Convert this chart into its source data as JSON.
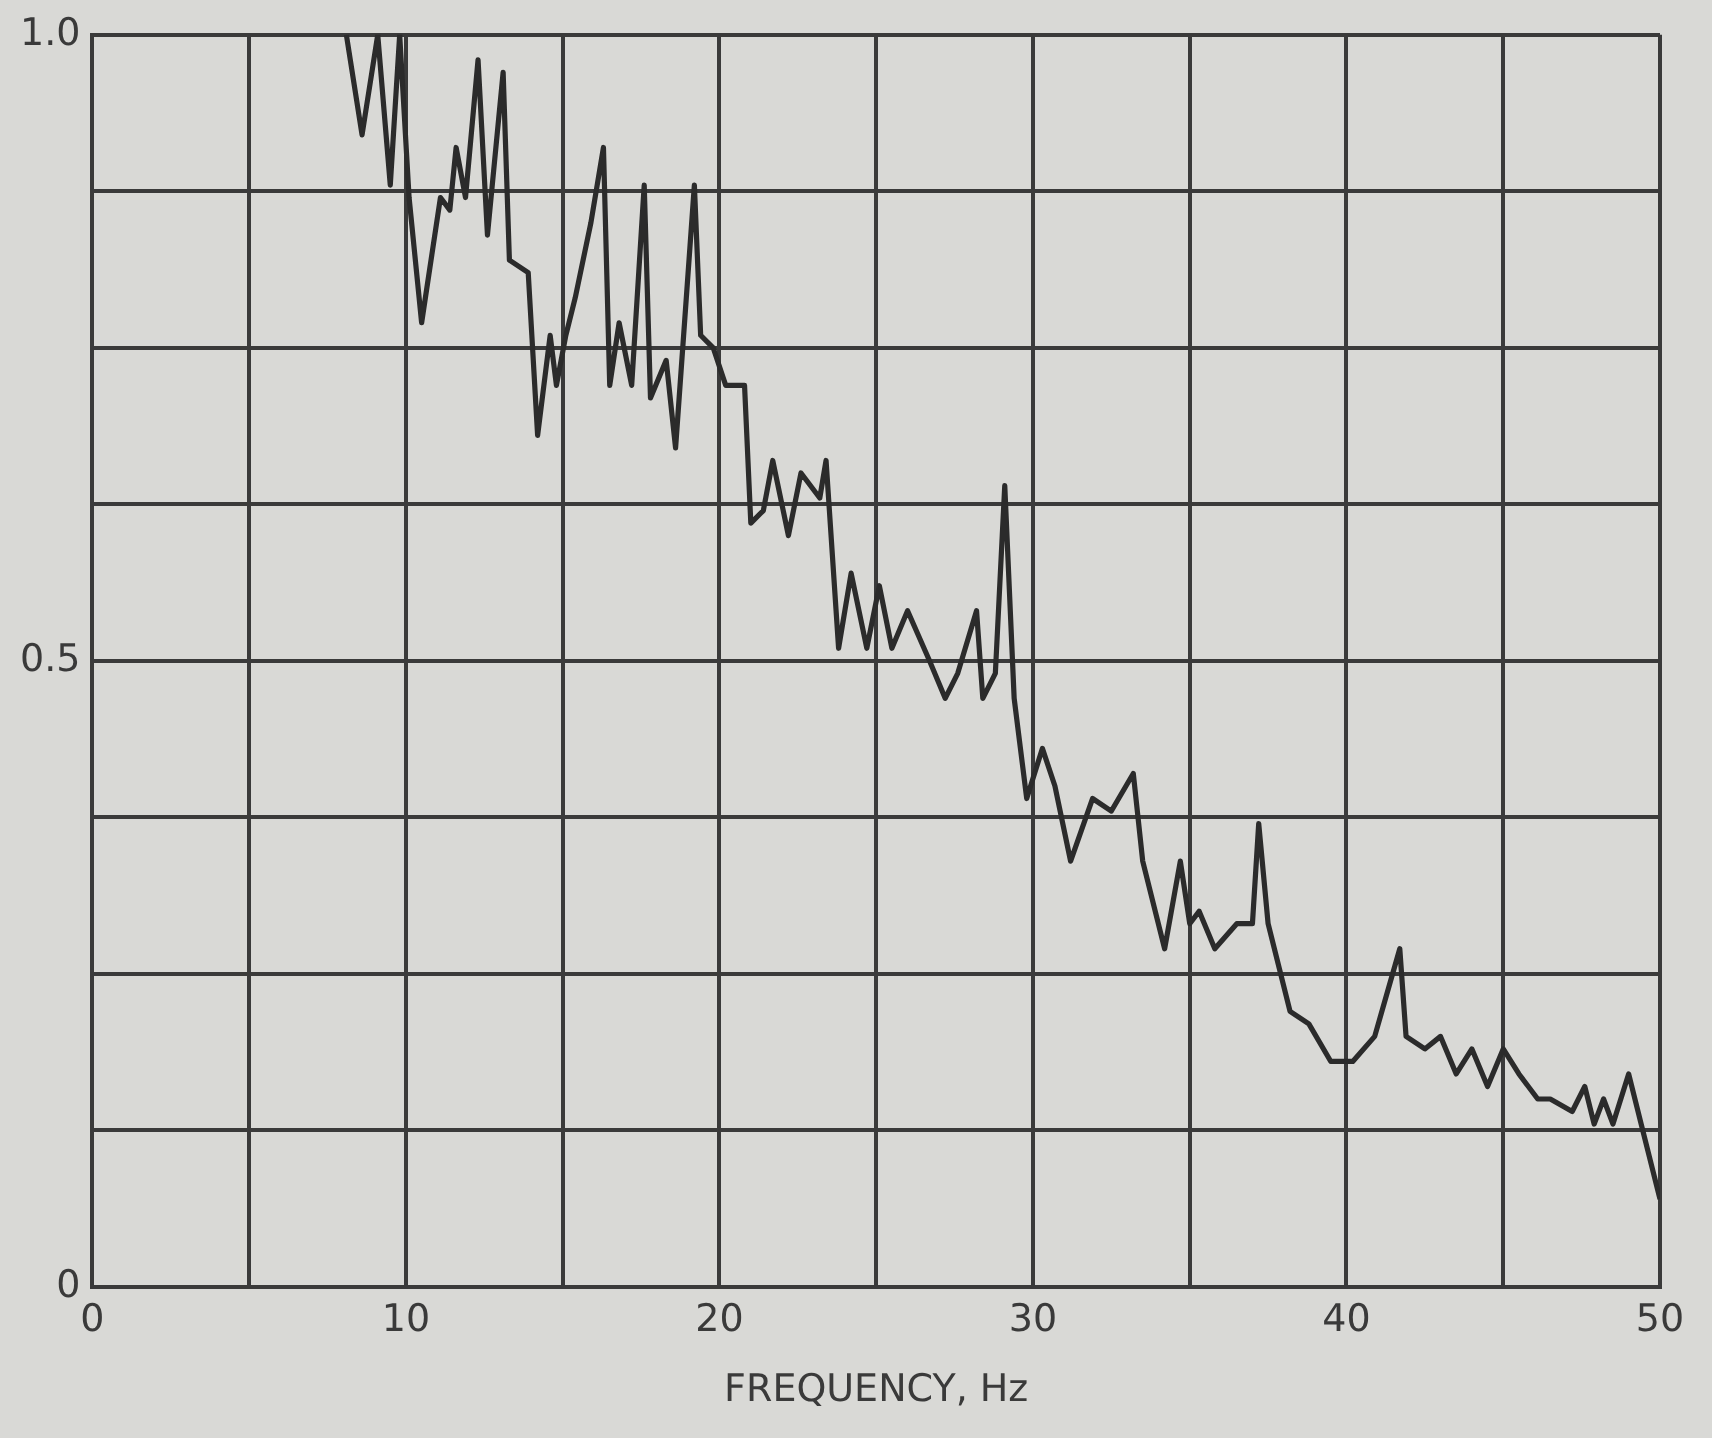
{
  "chart_data": {
    "type": "line",
    "xlabel": "FREQUENCY, Hz",
    "xlim": [
      0,
      50
    ],
    "ylim": [
      0,
      1
    ],
    "xticks": [
      0,
      {
        "value": 5,
        "label": null
      },
      10,
      {
        "value": 15,
        "label": null
      },
      20,
      {
        "value": 25,
        "label": null
      },
      30,
      {
        "value": 35,
        "label": null
      },
      40,
      {
        "value": 45,
        "label": null
      },
      50
    ],
    "yticks": [
      0,
      {
        "value": 0.125,
        "label": null
      },
      {
        "value": 0.25,
        "label": null
      },
      {
        "value": 0.375,
        "label": null
      },
      0.5,
      {
        "value": 0.625,
        "label": null
      },
      {
        "value": 0.75,
        "label": null
      },
      {
        "value": 0.875,
        "label": null
      },
      {
        "value": 1,
        "label": "1.0"
      }
    ],
    "grid": true,
    "legend": false,
    "marker": "none",
    "line_style": "solid",
    "series": [
      {
        "color": "#2b2b2b",
        "x": [
          8.1,
          8.6,
          9.1,
          9.5,
          9.8,
          10.1,
          10.5,
          11.1,
          11.4,
          11.6,
          11.9,
          12.3,
          12.6,
          13.1,
          13.3,
          13.9,
          14.2,
          14.6,
          14.8,
          15.1,
          15.4,
          15.9,
          16.3,
          16.5,
          16.8,
          17.2,
          17.6,
          17.8,
          18.3,
          18.6,
          19.2,
          19.4,
          19.8,
          20.2,
          20.8,
          21.0,
          21.4,
          21.7,
          22.2,
          22.6,
          23.2,
          23.4,
          23.8,
          24.2,
          24.7,
          25.1,
          25.5,
          26.0,
          26.7,
          27.2,
          27.6,
          28.2,
          28.4,
          28.8,
          29.1,
          29.4,
          29.8,
          30.3,
          30.7,
          31.2,
          31.9,
          32.5,
          33.2,
          33.5,
          34.2,
          34.7,
          35.0,
          35.3,
          35.8,
          36.5,
          37.0,
          37.2,
          37.5,
          38.2,
          38.8,
          39.5,
          40.2,
          40.9,
          41.7,
          41.9,
          42.5,
          43.0,
          43.5,
          44.0,
          44.5,
          45.0,
          45.5,
          46.1,
          46.5,
          47.2,
          47.6,
          47.9,
          48.2,
          48.5,
          49.0,
          49.4,
          50.0
        ],
        "values": [
          1.0,
          0.92,
          1.0,
          0.88,
          1.0,
          0.87,
          0.77,
          0.87,
          0.86,
          0.91,
          0.87,
          0.98,
          0.84,
          0.97,
          0.82,
          0.81,
          0.68,
          0.76,
          0.72,
          0.76,
          0.79,
          0.85,
          0.91,
          0.72,
          0.77,
          0.72,
          0.88,
          0.71,
          0.74,
          0.67,
          0.88,
          0.76,
          0.75,
          0.72,
          0.72,
          0.61,
          0.62,
          0.66,
          0.6,
          0.65,
          0.63,
          0.66,
          0.51,
          0.57,
          0.51,
          0.56,
          0.51,
          0.54,
          0.5,
          0.47,
          0.49,
          0.54,
          0.47,
          0.49,
          0.64,
          0.47,
          0.39,
          0.43,
          0.4,
          0.34,
          0.39,
          0.38,
          0.41,
          0.34,
          0.27,
          0.34,
          0.29,
          0.3,
          0.27,
          0.29,
          0.29,
          0.37,
          0.29,
          0.22,
          0.21,
          0.18,
          0.18,
          0.2,
          0.27,
          0.2,
          0.19,
          0.2,
          0.17,
          0.19,
          0.16,
          0.19,
          0.17,
          0.15,
          0.15,
          0.14,
          0.16,
          0.13,
          0.15,
          0.13,
          0.17,
          0.13,
          0.07
        ]
      }
    ]
  }
}
